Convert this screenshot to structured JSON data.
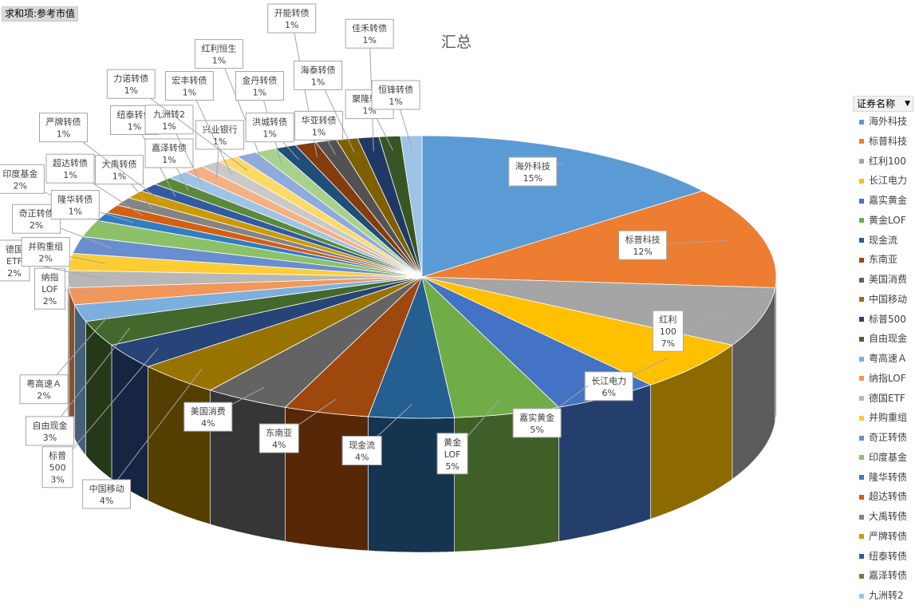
{
  "field_button": "求和项:参考市值",
  "chart_data": {
    "type": "pie",
    "title": "汇总",
    "legend_title": "证券名称",
    "legend_position": "right",
    "labels_shown": [
      "海外科技",
      "标普科技",
      "红利100",
      "长江电力",
      "嘉实黄金",
      "黄金LOF",
      "现金流",
      "东南亚",
      "美国消费",
      "中国移动",
      "标普500",
      "自由现金",
      "粤高速Ａ",
      "纳指LOF",
      "德国ETF",
      "并购重组",
      "奇正转债",
      "印度基金",
      "隆华转债",
      "超达转债",
      "大禹转债",
      "严牌转债",
      "纽泰转债",
      "嘉泽转债",
      "九洲转2",
      "兴业银行",
      "宏丰转债",
      "力诺转债",
      "红利恒生",
      "金丹转债",
      "洪城转债",
      "开能转债",
      "华亚转债",
      "海泰转债",
      "佳禾转债",
      "聚隆转债",
      "恒锋转债"
    ],
    "legend_entries": [
      "海外科技",
      "标普科技",
      "红利100",
      "长江电力",
      "嘉实黄金",
      "黄金LOF",
      "现金流",
      "东南亚",
      "美国消费",
      "中国移动",
      "标普500",
      "自由现金",
      "粤高速Ａ",
      "纳指LOF",
      "德国ETF",
      "并购重组",
      "奇正转债",
      "印度基金",
      "隆华转债",
      "超达转债",
      "大禹转债",
      "严牌转债",
      "纽泰转债",
      "嘉泽转债",
      "九洲转2"
    ],
    "values": [
      15,
      12,
      7,
      6,
      5,
      5,
      4,
      4,
      4,
      4,
      3,
      3,
      2,
      2,
      2,
      2,
      2,
      2,
      1,
      1,
      1,
      1,
      1,
      1,
      1,
      1,
      1,
      1,
      1,
      1,
      1,
      1,
      1,
      1,
      1,
      1,
      1
    ],
    "value_labels": [
      "15%",
      "12%",
      "7%",
      "6%",
      "5%",
      "5%",
      "4%",
      "4%",
      "4%",
      "4%",
      "3%",
      "3%",
      "2%",
      "2%",
      "2%",
      "2%",
      "2%",
      "2%",
      "1%",
      "1%",
      "1%",
      "1%",
      "1%",
      "1%",
      "1%",
      "1%",
      "1%",
      "1%",
      "1%",
      "1%",
      "1%",
      "1%",
      "1%",
      "1%",
      "1%",
      "1%",
      "1%"
    ],
    "colors": [
      "#5b9bd5",
      "#ed7d31",
      "#a5a5a5",
      "#ffc000",
      "#4472c4",
      "#70ad47",
      "#255e91",
      "#9e480e",
      "#636363",
      "#997300",
      "#264478",
      "#43682b",
      "#7cafdd",
      "#f1975a",
      "#b7b7b7",
      "#ffcd33",
      "#698ed0",
      "#8cc168",
      "#327dc2",
      "#d26012",
      "#848484",
      "#cc9a00",
      "#335aa1",
      "#5a8a39",
      "#9dc3e6",
      "#f4b183",
      "#c9c9c9",
      "#ffd966",
      "#8faadc",
      "#a9d18e",
      "#1f4e79",
      "#843c0c",
      "#525252",
      "#7f6000",
      "#203864",
      "#375623",
      "#9dc3e6"
    ]
  }
}
